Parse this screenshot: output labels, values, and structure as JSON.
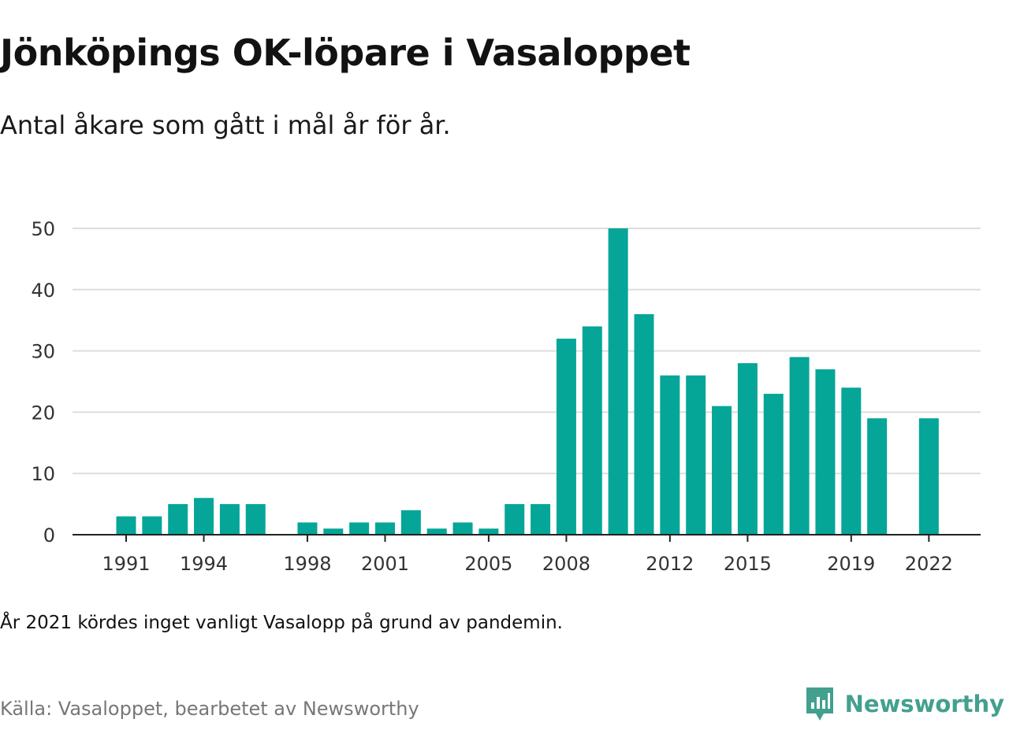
{
  "title": "Jönköpings OK-löpare i Vasaloppet",
  "subtitle": "Antal åkare som gått i mål år för år.",
  "note": "År 2021 kördes inget vanligt Vasalopp på grund av pandemin.",
  "source": "Källa: Vasaloppet, bearbetet av Newsworthy",
  "brand": {
    "name": "Newsworthy",
    "icon": "newsworthy-logo-icon",
    "color": "#43a08e"
  },
  "colors": {
    "bar": "#05a698",
    "grid": "#dddddd",
    "axis": "#222222",
    "text": "#333333"
  },
  "chart_data": {
    "type": "bar",
    "x": [
      1991,
      1992,
      1993,
      1994,
      1995,
      1996,
      1997,
      1998,
      1999,
      2000,
      2001,
      2002,
      2003,
      2004,
      2005,
      2006,
      2007,
      2008,
      2009,
      2010,
      2011,
      2012,
      2013,
      2014,
      2015,
      2016,
      2017,
      2018,
      2019,
      2020,
      2021,
      2022
    ],
    "values": [
      3,
      3,
      5,
      6,
      5,
      5,
      0,
      2,
      1,
      2,
      2,
      4,
      1,
      2,
      1,
      5,
      5,
      32,
      34,
      50,
      36,
      26,
      26,
      21,
      28,
      23,
      29,
      27,
      24,
      19,
      null,
      19
    ],
    "xticks": [
      "1991",
      "1994",
      "1998",
      "2001",
      "2005",
      "2008",
      "2012",
      "2015",
      "2019",
      "2022"
    ],
    "yticks": [
      0,
      10,
      20,
      30,
      40,
      50
    ],
    "ylim": [
      0,
      50
    ],
    "grid": true,
    "legend": "none"
  }
}
